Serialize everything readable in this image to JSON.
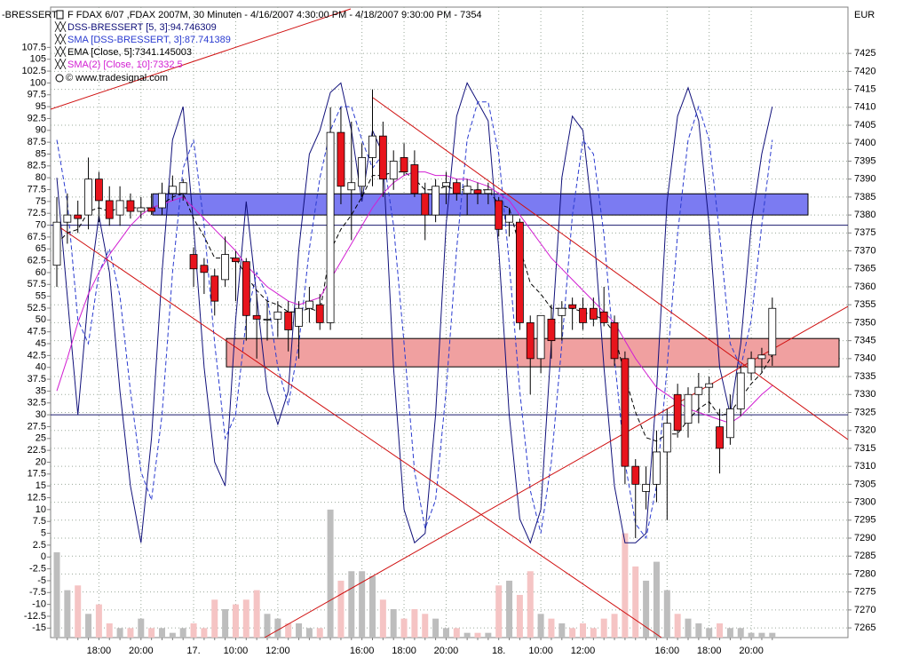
{
  "chart_data": {
    "type": "candlestick",
    "title": "F FDAX 6/07 ,FDAX 2007M, 30 Minuten - 4/16/2007 4:30:00 PM - 4/18/2007 9:30:00 PM - 7354",
    "copyright": "© www.tradesignal.com",
    "y_axis_label": "-BRESSERT",
    "y2_axis_label": "EUR",
    "categories": [
      null,
      null,
      null,
      null,
      "18:00",
      null,
      null,
      null,
      "20:00",
      null,
      null,
      null,
      null,
      "17.",
      null,
      null,
      null,
      "10:00",
      null,
      null,
      null,
      "12:00",
      null,
      null,
      null,
      null,
      null,
      null,
      null,
      "16:00",
      null,
      null,
      null,
      "18:00",
      null,
      null,
      null,
      "20:00",
      null,
      null,
      null,
      null,
      "18.",
      null,
      null,
      null,
      "10:00",
      null,
      null,
      null,
      "12:00",
      null,
      null,
      null,
      null,
      null,
      null,
      null,
      "16:00",
      null,
      null,
      null,
      "18:00",
      null,
      null,
      null,
      "20:00",
      null,
      null
    ],
    "ohlc": [
      [
        7366,
        7385,
        7360,
        7378
      ],
      [
        7378,
        7386,
        7372,
        7380
      ],
      [
        7380,
        7384,
        7375,
        7379
      ],
      [
        7380,
        7396,
        7376,
        7390
      ],
      [
        7390,
        7392,
        7378,
        7384
      ],
      [
        7384,
        7388,
        7377,
        7379
      ],
      [
        7380,
        7388,
        7377,
        7384
      ],
      [
        7384,
        7386,
        7379,
        7381
      ],
      [
        7381,
        7385,
        7379,
        7382
      ],
      [
        7382,
        7386,
        7380,
        7381
      ],
      [
        7382,
        7389,
        7380,
        7386
      ],
      [
        7386,
        7391,
        7384,
        7388
      ],
      [
        7386,
        7390,
        7384,
        7389
      ],
      [
        7369,
        7371,
        7360,
        7365
      ],
      [
        7366,
        7368,
        7358,
        7364
      ],
      [
        7363,
        7365,
        7352,
        7356
      ],
      [
        7362,
        7374,
        7360,
        7369
      ],
      [
        7368,
        7370,
        7356,
        7367
      ],
      [
        7367,
        7368,
        7345,
        7352
      ],
      [
        7352,
        7358,
        7340,
        7351
      ],
      [
        7351,
        7356,
        7345,
        7351
      ],
      [
        7351,
        7356,
        7346,
        7353
      ],
      [
        7353,
        7356,
        7342,
        7348
      ],
      [
        7349,
        7356,
        7340,
        7354
      ],
      [
        7354,
        7360,
        7350,
        7356
      ],
      [
        7355,
        7358,
        7348,
        7350
      ],
      [
        7350,
        7410,
        7348,
        7403
      ],
      [
        7403,
        7410,
        7383,
        7388
      ],
      [
        7387,
        7406,
        7373,
        7389
      ],
      [
        7388,
        7400,
        7385,
        7396
      ],
      [
        7396,
        7415,
        7388,
        7402
      ],
      [
        7402,
        7406,
        7385,
        7390
      ],
      [
        7390,
        7398,
        7387,
        7395
      ],
      [
        7396,
        7400,
        7391,
        7392
      ],
      [
        7394,
        7398,
        7385,
        7386
      ],
      [
        7386,
        7389,
        7373,
        7380
      ],
      [
        7380,
        7390,
        7378,
        7388
      ],
      [
        7388,
        7392,
        7383,
        7389
      ],
      [
        7389,
        7390,
        7384,
        7386
      ],
      [
        7386,
        7390,
        7380,
        7388
      ],
      [
        7387,
        7389,
        7383,
        7386
      ],
      [
        7386,
        7389,
        7383,
        7387
      ],
      [
        7384,
        7385,
        7374,
        7376
      ],
      [
        7378,
        7382,
        7374,
        7380
      ],
      [
        7378,
        7379,
        7348,
        7350
      ],
      [
        7350,
        7352,
        7330,
        7340
      ],
      [
        7340,
        7352,
        7336,
        7352
      ],
      [
        7351,
        7355,
        7340,
        7345
      ],
      [
        7352,
        7356,
        7345,
        7354
      ],
      [
        7355,
        7357,
        7348,
        7354
      ],
      [
        7354,
        7357,
        7348,
        7350
      ],
      [
        7354,
        7357,
        7349,
        7351
      ],
      [
        7353,
        7360,
        7349,
        7350
      ],
      [
        7350,
        7352,
        7338,
        7340
      ],
      [
        7340,
        7342,
        7305,
        7310
      ],
      [
        7310,
        7312,
        7290,
        7305
      ],
      [
        7303,
        7310,
        7298,
        7305
      ],
      [
        7305,
        7320,
        7300,
        7314
      ],
      [
        7314,
        7326,
        7295,
        7322
      ],
      [
        7330,
        7333,
        7318,
        7320
      ],
      [
        7322,
        7332,
        7318,
        7330
      ],
      [
        7330,
        7336,
        7322,
        7332
      ],
      [
        7332,
        7335,
        7325,
        7333
      ],
      [
        7321,
        7326,
        7308,
        7315
      ],
      [
        7318,
        7330,
        7316,
        7326
      ],
      [
        7326,
        7338,
        7324,
        7336
      ],
      [
        7336,
        7342,
        7334,
        7340
      ],
      [
        7340,
        7343,
        7336,
        7341
      ],
      [
        7341,
        7357,
        7338,
        7354
      ]
    ],
    "up_color": "#ffffff",
    "down_color": "#e8141c",
    "volume": [
      1,
      -7,
      -6,
      -12,
      -10,
      -14,
      -15,
      -15,
      -13,
      -15,
      -15,
      -16,
      -15,
      -14,
      -15,
      -9,
      -11,
      -10,
      -9,
      -7,
      -12,
      -13,
      -14,
      -14,
      -15,
      -15,
      10,
      -5,
      -3,
      -3,
      -4,
      -9,
      -11,
      -13,
      -11,
      -12,
      -13,
      -15,
      -15,
      -16,
      -16,
      -16,
      -6,
      -5,
      -8,
      -3,
      -12,
      -13,
      -14,
      -15,
      -14,
      -15,
      -13,
      -12,
      5,
      -2,
      -5,
      -1,
      -7,
      -12,
      -13,
      -14,
      -15,
      -14,
      -15,
      -15,
      -16,
      -16,
      -16
    ],
    "volume_up_color": "#bdbdbd",
    "volume_down_color": "#f5c4c4",
    "series": [
      {
        "name": "DSS-BRESSERT [5, 3]:94.746309",
        "color": "#10107a",
        "axis": "y",
        "dashed": false,
        "values": [
          80,
          55,
          30,
          55,
          72,
          60,
          35,
          15,
          3,
          25,
          60,
          88,
          95,
          70,
          40,
          20,
          15,
          50,
          75,
          55,
          35,
          28,
          35,
          65,
          85,
          90,
          98,
          100,
          90,
          75,
          90,
          85,
          40,
          10,
          3,
          5,
          30,
          70,
          93,
          100,
          96,
          92,
          65,
          30,
          8,
          3,
          10,
          45,
          80,
          93,
          90,
          70,
          40,
          15,
          3,
          3,
          5,
          35,
          75,
          93,
          99,
          92,
          70,
          40,
          30,
          45,
          70,
          85,
          95
        ]
      },
      {
        "name": "SMA [DSS-BRESSERT, 3]:87.741389",
        "color": "#2a3bd0",
        "axis": "y",
        "dashed": true,
        "values": [
          88,
          75,
          50,
          45,
          60,
          65,
          55,
          35,
          18,
          12,
          30,
          60,
          82,
          88,
          70,
          45,
          25,
          30,
          50,
          60,
          55,
          40,
          32,
          45,
          65,
          80,
          90,
          95,
          95,
          88,
          82,
          85,
          70,
          45,
          18,
          6,
          12,
          35,
          65,
          88,
          96,
          96,
          85,
          62,
          35,
          14,
          5,
          20,
          45,
          72,
          88,
          85,
          68,
          42,
          20,
          7,
          4,
          15,
          40,
          68,
          88,
          95,
          88,
          68,
          45,
          40,
          50,
          70,
          88
        ]
      },
      {
        "name": "EMA [Close, 5]:7341.145003",
        "color": "#000000",
        "axis": "y2",
        "dashed": true,
        "values": [
          7372,
          7375,
          7376,
          7381,
          7382,
          7381,
          7382,
          7382,
          7382,
          7382,
          7383,
          7385,
          7386,
          7379,
          7374,
          7368,
          7368,
          7368,
          7363,
          7359,
          7356,
          7355,
          7353,
          7353,
          7354,
          7353,
          7370,
          7376,
          7380,
          7385,
          7391,
          7391,
          7392,
          7392,
          7390,
          7387,
          7387,
          7388,
          7387,
          7387,
          7387,
          7387,
          7383,
          7382,
          7371,
          7361,
          7358,
          7354,
          7354,
          7354,
          7353,
          7352,
          7351,
          7347,
          7335,
          7325,
          7318,
          7317,
          7319,
          7319,
          7323,
          7326,
          7328,
          7324,
          7325,
          7329,
          7333,
          7336,
          7341
        ]
      },
      {
        "name": "SMA(2) [Close, 10]:7332.5",
        "color": "#d21fd2",
        "axis": "y2",
        "dashed": false,
        "values": [
          7331,
          7340,
          7350,
          7358,
          7364,
          7369,
          7373,
          7377,
          7380,
          7382,
          7383,
          7384,
          7385,
          7382,
          7379,
          7376,
          7373,
          7370,
          7366,
          7363,
          7360,
          7358,
          7356,
          7355,
          7356,
          7357,
          7362,
          7367,
          7372,
          7377,
          7382,
          7386,
          7389,
          7391,
          7392,
          7392,
          7391,
          7391,
          7390,
          7390,
          7389,
          7388,
          7386,
          7384,
          7380,
          7376,
          7372,
          7368,
          7365,
          7362,
          7359,
          7356,
          7353,
          7350,
          7345,
          7340,
          7336,
          7332,
          7330,
          7328,
          7326,
          7325,
          7324,
          7323,
          7322,
          7324,
          7327,
          7330,
          7332.5
        ]
      }
    ],
    "ylim": [
      -17,
      116
    ],
    "yticks": [
      107.5,
      105,
      102.5,
      100,
      97.5,
      95,
      92.5,
      90,
      87.5,
      85,
      82.5,
      80,
      77.5,
      75,
      72.5,
      70,
      67.5,
      65,
      62.5,
      60,
      57.5,
      55,
      52.5,
      50,
      47.5,
      45,
      42.5,
      40,
      37.5,
      35,
      32.5,
      30,
      27.5,
      25,
      22.5,
      20,
      17.5,
      15,
      12.5,
      10,
      7.5,
      5,
      2.5,
      0,
      -2.5,
      -5,
      -7.5,
      -10,
      -12.5,
      -15
    ],
    "y2lim": [
      7262.3,
      7437.9
    ],
    "y2ticks": [
      7425,
      7420,
      7415,
      7410,
      7405,
      7400,
      7395,
      7390,
      7385,
      7380,
      7375,
      7370,
      7365,
      7360,
      7355,
      7350,
      7345,
      7340,
      7335,
      7330,
      7325,
      7320,
      7315,
      7310,
      7305,
      7300,
      7295,
      7290,
      7285,
      7280,
      7275,
      7270,
      7265
    ],
    "levels": [
      70,
      30
    ],
    "level_color": "#1a1a6e",
    "zones": [
      {
        "from": 7380,
        "to": 7385.9,
        "color": "#7b7bf2"
      },
      {
        "from": 7337.7,
        "to": 7345.6,
        "color": "#f0a0a0"
      }
    ],
    "grid": true
  }
}
